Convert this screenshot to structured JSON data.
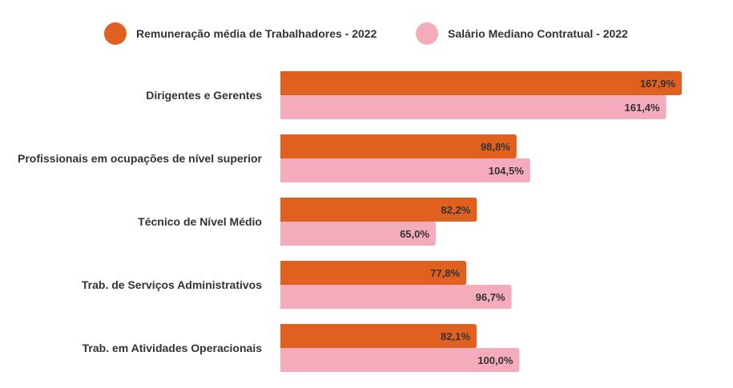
{
  "chart_data": {
    "type": "bar",
    "orientation": "horizontal",
    "title": "",
    "xlabel": "",
    "ylabel": "",
    "grid": false,
    "legend_position": "top",
    "categories": [
      "Dirigentes e Gerentes",
      "Profissionais em ocupações de nível superior",
      "Técnico de Nível Médio",
      "Trab. de Serviços Administrativos",
      "Trab. em Atividades Operacionais"
    ],
    "series": [
      {
        "name": "Remuneração média de Trabalhadores - 2022",
        "color": "#E06020",
        "values": [
          167.9,
          98.8,
          82.2,
          77.8,
          82.1
        ],
        "labels": [
          "167,9%",
          "98,8%",
          "82,2%",
          "77,8%",
          "82,1%"
        ]
      },
      {
        "name": "Salário Mediano Contratual - 2022",
        "color": "#F4ABBB",
        "values": [
          161.4,
          104.5,
          65.0,
          96.7,
          100.0
        ],
        "labels": [
          "161,4%",
          "104,5%",
          "65,0%",
          "96,7%",
          "100,0%"
        ]
      }
    ],
    "xlim": [
      0,
      167.9
    ]
  }
}
